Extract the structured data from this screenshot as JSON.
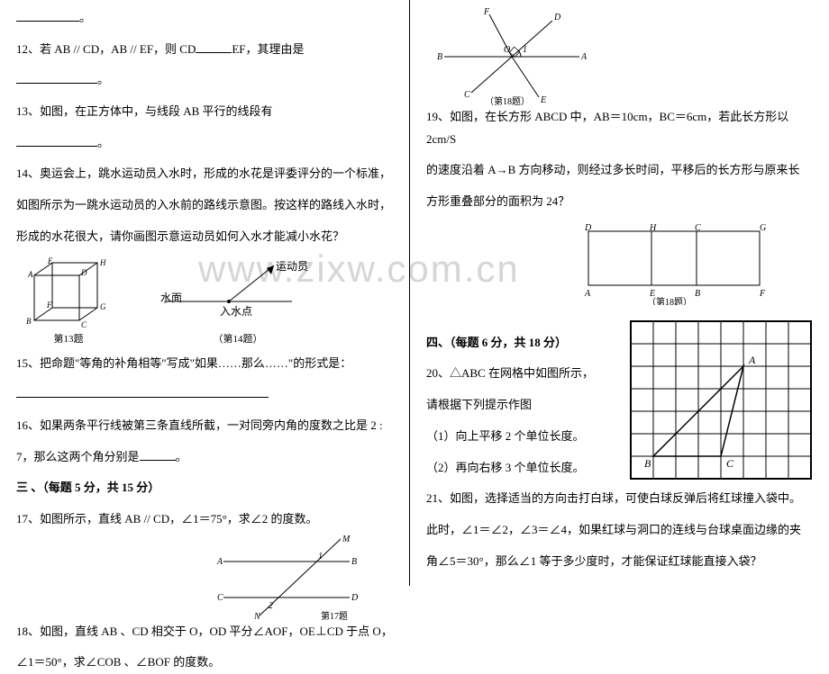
{
  "watermark": "www.zixw.com.cn",
  "left": {
    "q11_trail": "。",
    "q12": "12、若 AB // CD，AB // EF，则 CD",
    "q12_after": "EF，其理由是",
    "q12_end": "。",
    "q13": "13、如图，在正方体中，与线段 AB 平行的线段有",
    "q13_end": "。",
    "q14a": "14、奥运会上，跳水运动员入水时，形成的水花是评委评分的一个标准，",
    "q14b": "如图所示为一跳水运动员的入水前的路线示意图。按这样的路线入水时，",
    "q14c": "形成的水花很大，请你画图示意运动员如何入水才能减小水花？",
    "fig13": {
      "labels": {
        "A": "A",
        "B": "B",
        "C": "C",
        "D": "D",
        "E": "E",
        "F": "F",
        "G": "G",
        "H": "H"
      },
      "caption": "第13题",
      "stroke": "#000000"
    },
    "fig14": {
      "water": "水面",
      "athlete": "运动员",
      "point": "入水点",
      "caption": "（第14题）",
      "stroke": "#000000"
    },
    "q15": "15、把命题\"等角的补角相等\"写成\"如果……那么……\"的形式是：",
    "q16a": "16、如果两条平行线被第三条直线所截，一对同旁内角的度数之比是 2 :",
    "q16b": "7，那么这两个角分别是",
    "q16_end": "。",
    "sec3": "三 、（每题 5 分，共 15 分）",
    "q17": "17、如图所示，直线 AB // CD，∠1＝75°，求∠2 的度数。",
    "fig17": {
      "A": "A",
      "B": "B",
      "C": "C",
      "D": "D",
      "M": "M",
      "N": "N",
      "a1": "1",
      "a2": "2",
      "caption": "第17题",
      "stroke": "#000000"
    },
    "q18a": "18、如图，直线 AB 、CD 相交于 O，OD 平分∠AOF，OE⊥CD 于点 O，",
    "q18b": "∠1＝50°，求∠COB 、∠BOF 的度数。"
  },
  "right": {
    "fig18a": {
      "A": "A",
      "B": "B",
      "C": "C",
      "D": "D",
      "E": "E",
      "F": "F",
      "O": "O",
      "a1": "1",
      "caption": "（第18题）",
      "stroke": "#000000"
    },
    "q19a": "19、如图，在长方形 ABCD 中，AB＝10cm，BC＝6cm，若此长方形以 2cm/S",
    "q19b": "的速度沿着 A→B 方向移动，则经过多长时间，平移后的长方形与原来长",
    "q19c": "方形重叠部分的面积为 24？",
    "fig18b": {
      "A": "A",
      "B": "B",
      "C": "C",
      "D": "D",
      "E": "E",
      "F": "F",
      "G": "G",
      "H": "H",
      "caption": "（第18题）",
      "stroke": "#000000"
    },
    "sec4": "四、（每题 6 分，共 18 分）",
    "q20a": "20、△ABC 在网格中如图所示，",
    "q20b": "请根据下列提示作图",
    "q20c": "（1）向上平移 2 个单位长度。",
    "q20d": "（2）再向右移 3 个单位长度。",
    "grid": {
      "cols": 8,
      "rows": 7,
      "cell": 25,
      "tri": {
        "A": [
          5,
          2
        ],
        "B": [
          1,
          6
        ],
        "C": [
          4,
          6
        ]
      },
      "labels": {
        "A": "A",
        "B": "B",
        "C": "C"
      },
      "stroke": "#000000"
    },
    "q21a": "21、如图，选择适当的方向击打白球，可使白球反弹后将红球撞入袋中。",
    "q21b": "此时，∠1＝∠2，∠3＝∠4，如果红球与洞口的连线与台球桌面边缘的夹",
    "q21c": "角∠5＝30°，那么∠1 等于多少度时，才能保证红球能直接入袋？"
  }
}
